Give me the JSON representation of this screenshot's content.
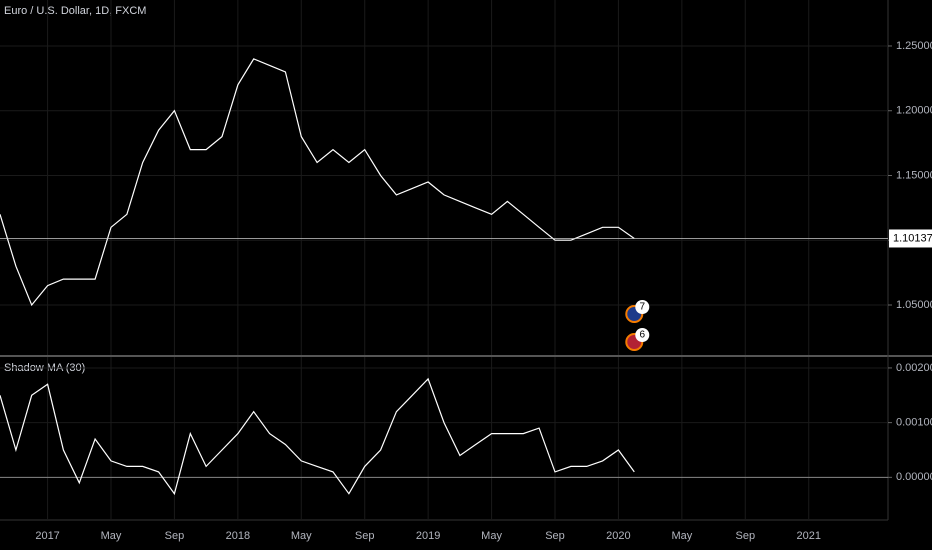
{
  "chart_data": [
    {
      "type": "line",
      "title": "Euro / U.S. Dollar, 1D, FXCM",
      "x": [
        "2016-10",
        "2016-11",
        "2016-12",
        "2017-01",
        "2017-02",
        "2017-03",
        "2017-04",
        "2017-05",
        "2017-06",
        "2017-07",
        "2017-08",
        "2017-09",
        "2017-10",
        "2017-11",
        "2017-12",
        "2018-01",
        "2018-02",
        "2018-03",
        "2018-04",
        "2018-05",
        "2018-06",
        "2018-07",
        "2018-08",
        "2018-09",
        "2018-10",
        "2018-11",
        "2018-12",
        "2019-01",
        "2019-02",
        "2019-03",
        "2019-04",
        "2019-05",
        "2019-06",
        "2019-07",
        "2019-08",
        "2019-09",
        "2019-10",
        "2019-11",
        "2019-12",
        "2020-01",
        "2020-02"
      ],
      "series": [
        {
          "color": "#ffffff",
          "values": [
            1.12,
            1.08,
            1.05,
            1.065,
            1.07,
            1.07,
            1.07,
            1.11,
            1.12,
            1.16,
            1.185,
            1.2,
            1.17,
            1.17,
            1.18,
            1.22,
            1.24,
            1.235,
            1.23,
            1.18,
            1.16,
            1.17,
            1.16,
            1.17,
            1.15,
            1.135,
            1.14,
            1.145,
            1.135,
            1.13,
            1.125,
            1.12,
            1.13,
            1.12,
            1.11,
            1.1,
            1.1,
            1.105,
            1.11,
            1.11,
            1.10137
          ]
        }
      ],
      "xlim": [
        "2016-10",
        "2021-06"
      ],
      "ylim": [
        1.0114,
        1.2855
      ],
      "yticks": [
        {
          "value": 1.05,
          "label": "1.05000"
        },
        {
          "value": 1.1,
          "label": "1.10000"
        },
        {
          "value": 1.15,
          "label": "1.15000"
        },
        {
          "value": 1.2,
          "label": "1.20000"
        },
        {
          "value": 1.25,
          "label": "1.25000"
        }
      ],
      "last_price": 1.10137,
      "annotations": [
        "7",
        "6"
      ],
      "grid": true
    },
    {
      "type": "line",
      "title": "Shadow MA (30)",
      "x": [
        "2016-10",
        "2016-11",
        "2016-12",
        "2017-01",
        "2017-02",
        "2017-03",
        "2017-04",
        "2017-05",
        "2017-06",
        "2017-07",
        "2017-08",
        "2017-09",
        "2017-10",
        "2017-11",
        "2017-12",
        "2018-01",
        "2018-02",
        "2018-03",
        "2018-04",
        "2018-05",
        "2018-06",
        "2018-07",
        "2018-08",
        "2018-09",
        "2018-10",
        "2018-11",
        "2018-12",
        "2019-01",
        "2019-02",
        "2019-03",
        "2019-04",
        "2019-05",
        "2019-06",
        "2019-07",
        "2019-08",
        "2019-09",
        "2019-10",
        "2019-11",
        "2019-12",
        "2020-01",
        "2020-02"
      ],
      "series": [
        {
          "color": "#ffffff",
          "values": [
            0.0015,
            0.0005,
            0.0015,
            0.0017,
            0.0005,
            -0.0001,
            0.0007,
            0.0003,
            0.0002,
            0.0002,
            0.0001,
            -0.0003,
            0.0008,
            0.0002,
            0.0005,
            0.0008,
            0.0012,
            0.0008,
            0.0006,
            0.0003,
            0.0002,
            0.0001,
            -0.0003,
            0.0002,
            0.0005,
            0.0012,
            0.0015,
            0.0018,
            0.001,
            0.0004,
            0.0006,
            0.0008,
            0.0008,
            0.0008,
            0.0009,
            0.0001,
            0.0002,
            0.0002,
            0.0003,
            0.0005,
            0.0001
          ]
        }
      ],
      "xlim": [
        "2016-10",
        "2021-06"
      ],
      "ylim": [
        -0.00078,
        0.0022
      ],
      "yticks": [
        {
          "value": 0,
          "label": "0.00000"
        },
        {
          "value": 0.001,
          "label": "0.00100"
        },
        {
          "value": 0.002,
          "label": "0.00200"
        }
      ],
      "xticks": [
        {
          "value": "2017-01",
          "label": "2017"
        },
        {
          "value": "2017-05",
          "label": "May"
        },
        {
          "value": "2017-09",
          "label": "Sep"
        },
        {
          "value": "2018-01",
          "label": "2018"
        },
        {
          "value": "2018-05",
          "label": "May"
        },
        {
          "value": "2018-09",
          "label": "Sep"
        },
        {
          "value": "2019-01",
          "label": "2019"
        },
        {
          "value": "2019-05",
          "label": "May"
        },
        {
          "value": "2019-09",
          "label": "Sep"
        },
        {
          "value": "2020-01",
          "label": "2020"
        },
        {
          "value": "2020-05",
          "label": "May"
        },
        {
          "value": "2020-09",
          "label": "Sep"
        },
        {
          "value": "2021-01",
          "label": "2021"
        }
      ],
      "grid": true
    }
  ]
}
